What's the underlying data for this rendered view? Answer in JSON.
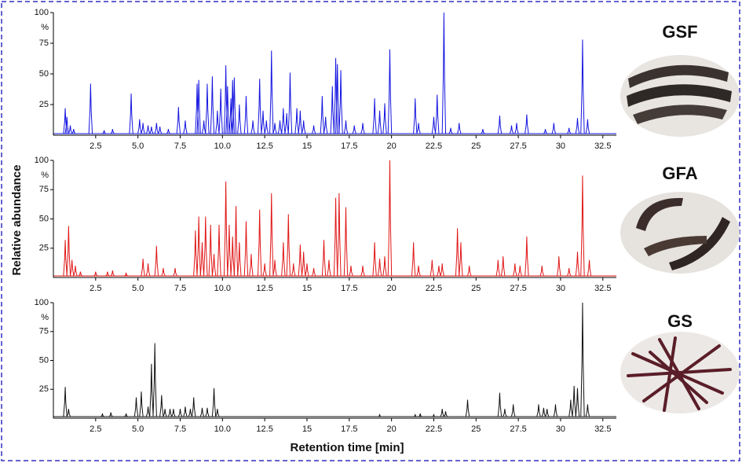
{
  "chart_data": [
    {
      "type": "chromatogram",
      "title": "GSF",
      "color": "#1515e0",
      "y_unit": "%",
      "xlim": [
        0,
        33.3
      ],
      "ylim": [
        0,
        100
      ],
      "xticks": [
        2.5,
        {
          "value": 5,
          "label": "5.0"
        },
        7.5,
        {
          "value": 10,
          "label": "10.0"
        },
        12.5,
        15,
        17.5,
        20,
        22.5,
        25,
        27.5,
        30,
        32.5
      ],
      "yticks": [
        25,
        50,
        75,
        100
      ],
      "x": [
        0.7,
        0.8,
        1.0,
        1.2,
        2.2,
        3.0,
        3.5,
        4.6,
        5.1,
        5.3,
        5.6,
        5.8,
        6.1,
        6.3,
        6.8,
        7.4,
        7.8,
        8.5,
        8.6,
        8.9,
        9.1,
        9.4,
        9.7,
        9.9,
        10.2,
        10.3,
        10.5,
        10.6,
        10.7,
        11.0,
        11.4,
        11.8,
        12.2,
        12.4,
        12.6,
        12.9,
        13.1,
        13.4,
        13.6,
        13.8,
        14.0,
        14.4,
        14.6,
        14.8,
        15.4,
        15.9,
        16.1,
        16.5,
        16.7,
        16.8,
        17.0,
        17.3,
        17.8,
        18.3,
        19.0,
        19.3,
        19.6,
        19.9,
        21.4,
        21.6,
        22.5,
        22.7,
        23.1,
        23.5,
        24.0,
        25.4,
        26.4,
        27.1,
        27.4,
        28.0,
        29.1,
        29.6,
        30.5,
        31.0,
        31.3,
        31.6
      ],
      "values": [
        22,
        15,
        8,
        5,
        42,
        4,
        5,
        34,
        13,
        10,
        8,
        7,
        10,
        7,
        5,
        23,
        12,
        42,
        45,
        12,
        42,
        48,
        20,
        38,
        57,
        40,
        30,
        45,
        47,
        25,
        32,
        12,
        46,
        20,
        12,
        69,
        10,
        12,
        22,
        18,
        51,
        22,
        20,
        12,
        8,
        32,
        15,
        40,
        63,
        58,
        53,
        12,
        8,
        10,
        30,
        20,
        26,
        70,
        30,
        10,
        15,
        33,
        100,
        6,
        10,
        5,
        16,
        8,
        10,
        17,
        5,
        10,
        6,
        14,
        78,
        13
      ]
    },
    {
      "type": "chromatogram",
      "title": "GFA",
      "color": "#e01515",
      "y_unit": "%",
      "ylabel": "Relative abundance",
      "xlim": [
        0,
        33.3
      ],
      "ylim": [
        0,
        100
      ],
      "xticks": [
        2.5,
        {
          "value": 5,
          "label": "5.0"
        },
        7.5,
        {
          "value": 10,
          "label": "10.0"
        },
        12.5,
        15,
        17.5,
        20,
        22.5,
        25,
        27.5,
        30,
        32.5
      ],
      "yticks": [
        25,
        50,
        75,
        100
      ],
      "x": [
        0.7,
        0.9,
        1.1,
        1.3,
        1.6,
        2.5,
        3.2,
        3.5,
        4.3,
        5.3,
        5.6,
        6.1,
        6.5,
        7.2,
        8.4,
        8.6,
        8.8,
        9.0,
        9.3,
        9.5,
        9.8,
        10.2,
        10.4,
        10.6,
        10.8,
        11.0,
        11.4,
        11.7,
        12.2,
        12.5,
        12.9,
        13.1,
        13.6,
        13.9,
        14.2,
        14.6,
        14.8,
        15.0,
        15.4,
        16.0,
        16.3,
        16.7,
        16.9,
        17.3,
        17.6,
        18.3,
        19.0,
        19.3,
        19.6,
        19.9,
        21.3,
        21.6,
        22.4,
        22.8,
        23.0,
        23.9,
        24.1,
        24.6,
        26.3,
        26.6,
        27.3,
        27.6,
        28.0,
        28.9,
        29.9,
        30.5,
        31.0,
        31.3,
        31.7
      ],
      "values": [
        32,
        44,
        15,
        10,
        5,
        5,
        5,
        6,
        4,
        16,
        12,
        27,
        8,
        8,
        40,
        52,
        30,
        52,
        45,
        20,
        45,
        82,
        45,
        35,
        61,
        30,
        48,
        20,
        58,
        12,
        72,
        15,
        30,
        54,
        12,
        28,
        22,
        12,
        8,
        32,
        15,
        68,
        72,
        60,
        10,
        10,
        30,
        16,
        18,
        100,
        30,
        10,
        15,
        10,
        12,
        42,
        30,
        10,
        15,
        18,
        12,
        10,
        35,
        10,
        18,
        8,
        22,
        87,
        15
      ]
    },
    {
      "type": "chromatogram",
      "title": "GS",
      "color": "#111111",
      "y_unit": "%",
      "xlabel": "Retention time [min]",
      "xlim": [
        0,
        33.3
      ],
      "ylim": [
        0,
        100
      ],
      "xticks": [
        2.5,
        {
          "value": 5,
          "label": "5.0"
        },
        7.5,
        {
          "value": 10,
          "label": "10.0"
        },
        12.5,
        15,
        17.5,
        20,
        22.5,
        25,
        27.5,
        30,
        32.5
      ],
      "yticks": [
        25,
        50,
        75,
        100
      ],
      "x": [
        0.7,
        0.9,
        2.9,
        3.4,
        4.3,
        4.9,
        5.2,
        5.6,
        5.8,
        6.0,
        6.4,
        6.6,
        6.9,
        7.1,
        7.5,
        7.8,
        8.1,
        8.3,
        8.8,
        9.1,
        9.5,
        9.7,
        19.3,
        21.4,
        21.7,
        22.5,
        23.0,
        23.2,
        24.5,
        26.4,
        26.7,
        27.2,
        28.7,
        29.0,
        29.2,
        29.7,
        30.6,
        30.8,
        31.0,
        31.3,
        31.6
      ],
      "values": [
        27,
        8,
        4,
        5,
        4,
        18,
        23,
        10,
        47,
        65,
        20,
        8,
        8,
        8,
        8,
        10,
        8,
        18,
        9,
        9,
        26,
        8,
        3,
        3,
        4,
        3,
        8,
        6,
        16,
        22,
        8,
        12,
        12,
        9,
        8,
        12,
        16,
        28,
        26,
        100,
        12
      ]
    }
  ]
}
